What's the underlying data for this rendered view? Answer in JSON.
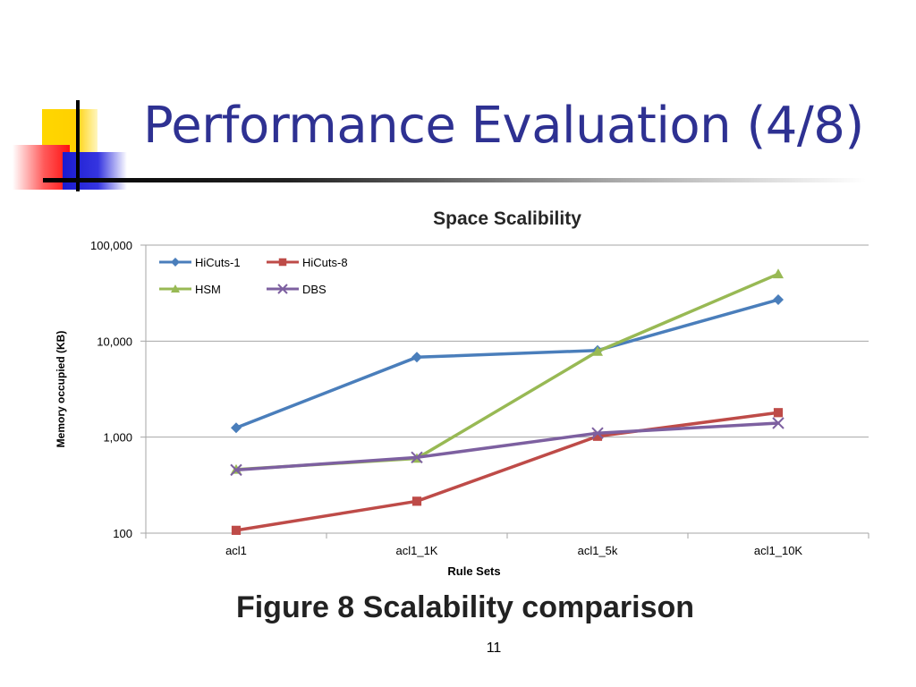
{
  "slide": {
    "title": "Performance Evaluation (4/8)",
    "caption": "Figure 8 Scalability comparison",
    "page_number": "11"
  },
  "colors": {
    "title": "#2e3192",
    "grid": "#a6a6a6"
  },
  "chart_data": {
    "type": "line",
    "title": "Space Scalibility",
    "xlabel": "Rule Sets",
    "ylabel": "Memory occupied  (KB)",
    "yscale": "log",
    "ylim": [
      100,
      100000
    ],
    "y_ticks": [
      100,
      1000,
      10000,
      100000
    ],
    "y_tick_labels": [
      "100",
      "1,000",
      "10,000",
      "100,000"
    ],
    "grid": true,
    "legend_position": "top-left",
    "categories": [
      "acl1",
      "acl1_1K",
      "acl1_5k",
      "acl1_10K"
    ],
    "series": [
      {
        "name": "HiCuts-1",
        "color": "#4a7ebb",
        "marker": "diamond",
        "values": [
          1250,
          6800,
          8000,
          27000
        ]
      },
      {
        "name": "HiCuts-8",
        "color": "#be4b48",
        "marker": "square",
        "values": [
          107,
          215,
          1020,
          1800
        ]
      },
      {
        "name": "HSM",
        "color": "#98b954",
        "marker": "triangle",
        "values": [
          460,
          600,
          7800,
          50000
        ]
      },
      {
        "name": "DBS",
        "color": "#7d60a0",
        "marker": "x",
        "values": [
          455,
          615,
          1100,
          1400
        ]
      }
    ]
  }
}
